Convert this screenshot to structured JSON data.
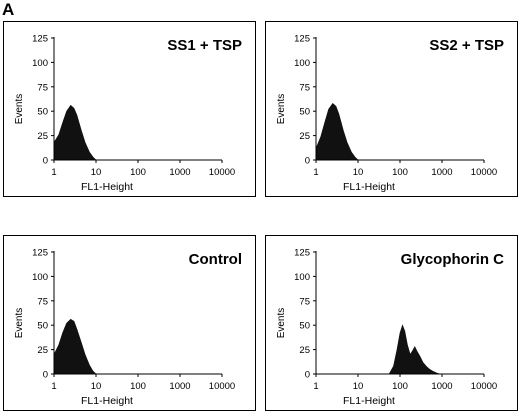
{
  "figure": {
    "panel_letter": "A"
  },
  "chart_data": [
    {
      "type": "area",
      "title": "SS1 + TSP",
      "xlabel": "FL1-Height",
      "ylabel": "Events",
      "xscale": "log",
      "xlim": [
        1,
        10000
      ],
      "ylim": [
        0,
        125
      ],
      "xticks": [
        "1",
        "10",
        "100",
        "1000",
        "10000"
      ],
      "yticks": [
        "0",
        "25",
        "50",
        "75",
        "100",
        "125"
      ],
      "x": [
        1,
        1.3,
        1.6,
        2,
        2.5,
        3,
        3.5,
        4.5,
        5.5,
        7,
        8.5,
        10
      ],
      "values": [
        18,
        26,
        38,
        50,
        56,
        53,
        46,
        30,
        18,
        8,
        3,
        0
      ],
      "grid": false
    },
    {
      "type": "area",
      "title": "SS2 + TSP",
      "xlabel": "FL1-Height",
      "ylabel": "Events",
      "xscale": "log",
      "xlim": [
        1,
        10000
      ],
      "ylim": [
        0,
        125
      ],
      "xticks": [
        "1",
        "10",
        "100",
        "1000",
        "10000"
      ],
      "yticks": [
        "0",
        "25",
        "50",
        "75",
        "100",
        "125"
      ],
      "x": [
        1,
        1.3,
        1.6,
        2,
        2.5,
        3,
        3.5,
        4.5,
        5.5,
        7,
        8.5,
        10
      ],
      "values": [
        12,
        24,
        38,
        52,
        58,
        55,
        47,
        30,
        18,
        8,
        3,
        0
      ],
      "grid": false
    },
    {
      "type": "area",
      "title": "Control",
      "xlabel": "FL1-Height",
      "ylabel": "Events",
      "xscale": "log",
      "xlim": [
        1,
        10000
      ],
      "ylim": [
        0,
        125
      ],
      "xticks": [
        "1",
        "10",
        "100",
        "1000",
        "10000"
      ],
      "yticks": [
        "0",
        "25",
        "50",
        "75",
        "100",
        "125"
      ],
      "x": [
        1,
        1.3,
        1.6,
        2,
        2.5,
        3,
        3.5,
        4.5,
        5.5,
        7,
        8.5,
        10
      ],
      "values": [
        20,
        30,
        42,
        52,
        56,
        54,
        46,
        32,
        20,
        9,
        3,
        0
      ],
      "grid": false
    },
    {
      "type": "area",
      "title": "Glycophorin C",
      "xlabel": "FL1-Height",
      "ylabel": "Events",
      "xscale": "log",
      "xlim": [
        1,
        10000
      ],
      "ylim": [
        0,
        125
      ],
      "xticks": [
        "1",
        "10",
        "100",
        "1000",
        "10000"
      ],
      "yticks": [
        "0",
        "25",
        "50",
        "75",
        "100",
        "125"
      ],
      "x": [
        55,
        70,
        85,
        100,
        115,
        130,
        150,
        175,
        200,
        225,
        250,
        300,
        350,
        420,
        500,
        600,
        750,
        900
      ],
      "values": [
        0,
        8,
        25,
        42,
        50,
        44,
        30,
        20,
        24,
        28,
        24,
        18,
        12,
        8,
        5,
        3,
        1,
        0
      ],
      "grid": false
    }
  ]
}
